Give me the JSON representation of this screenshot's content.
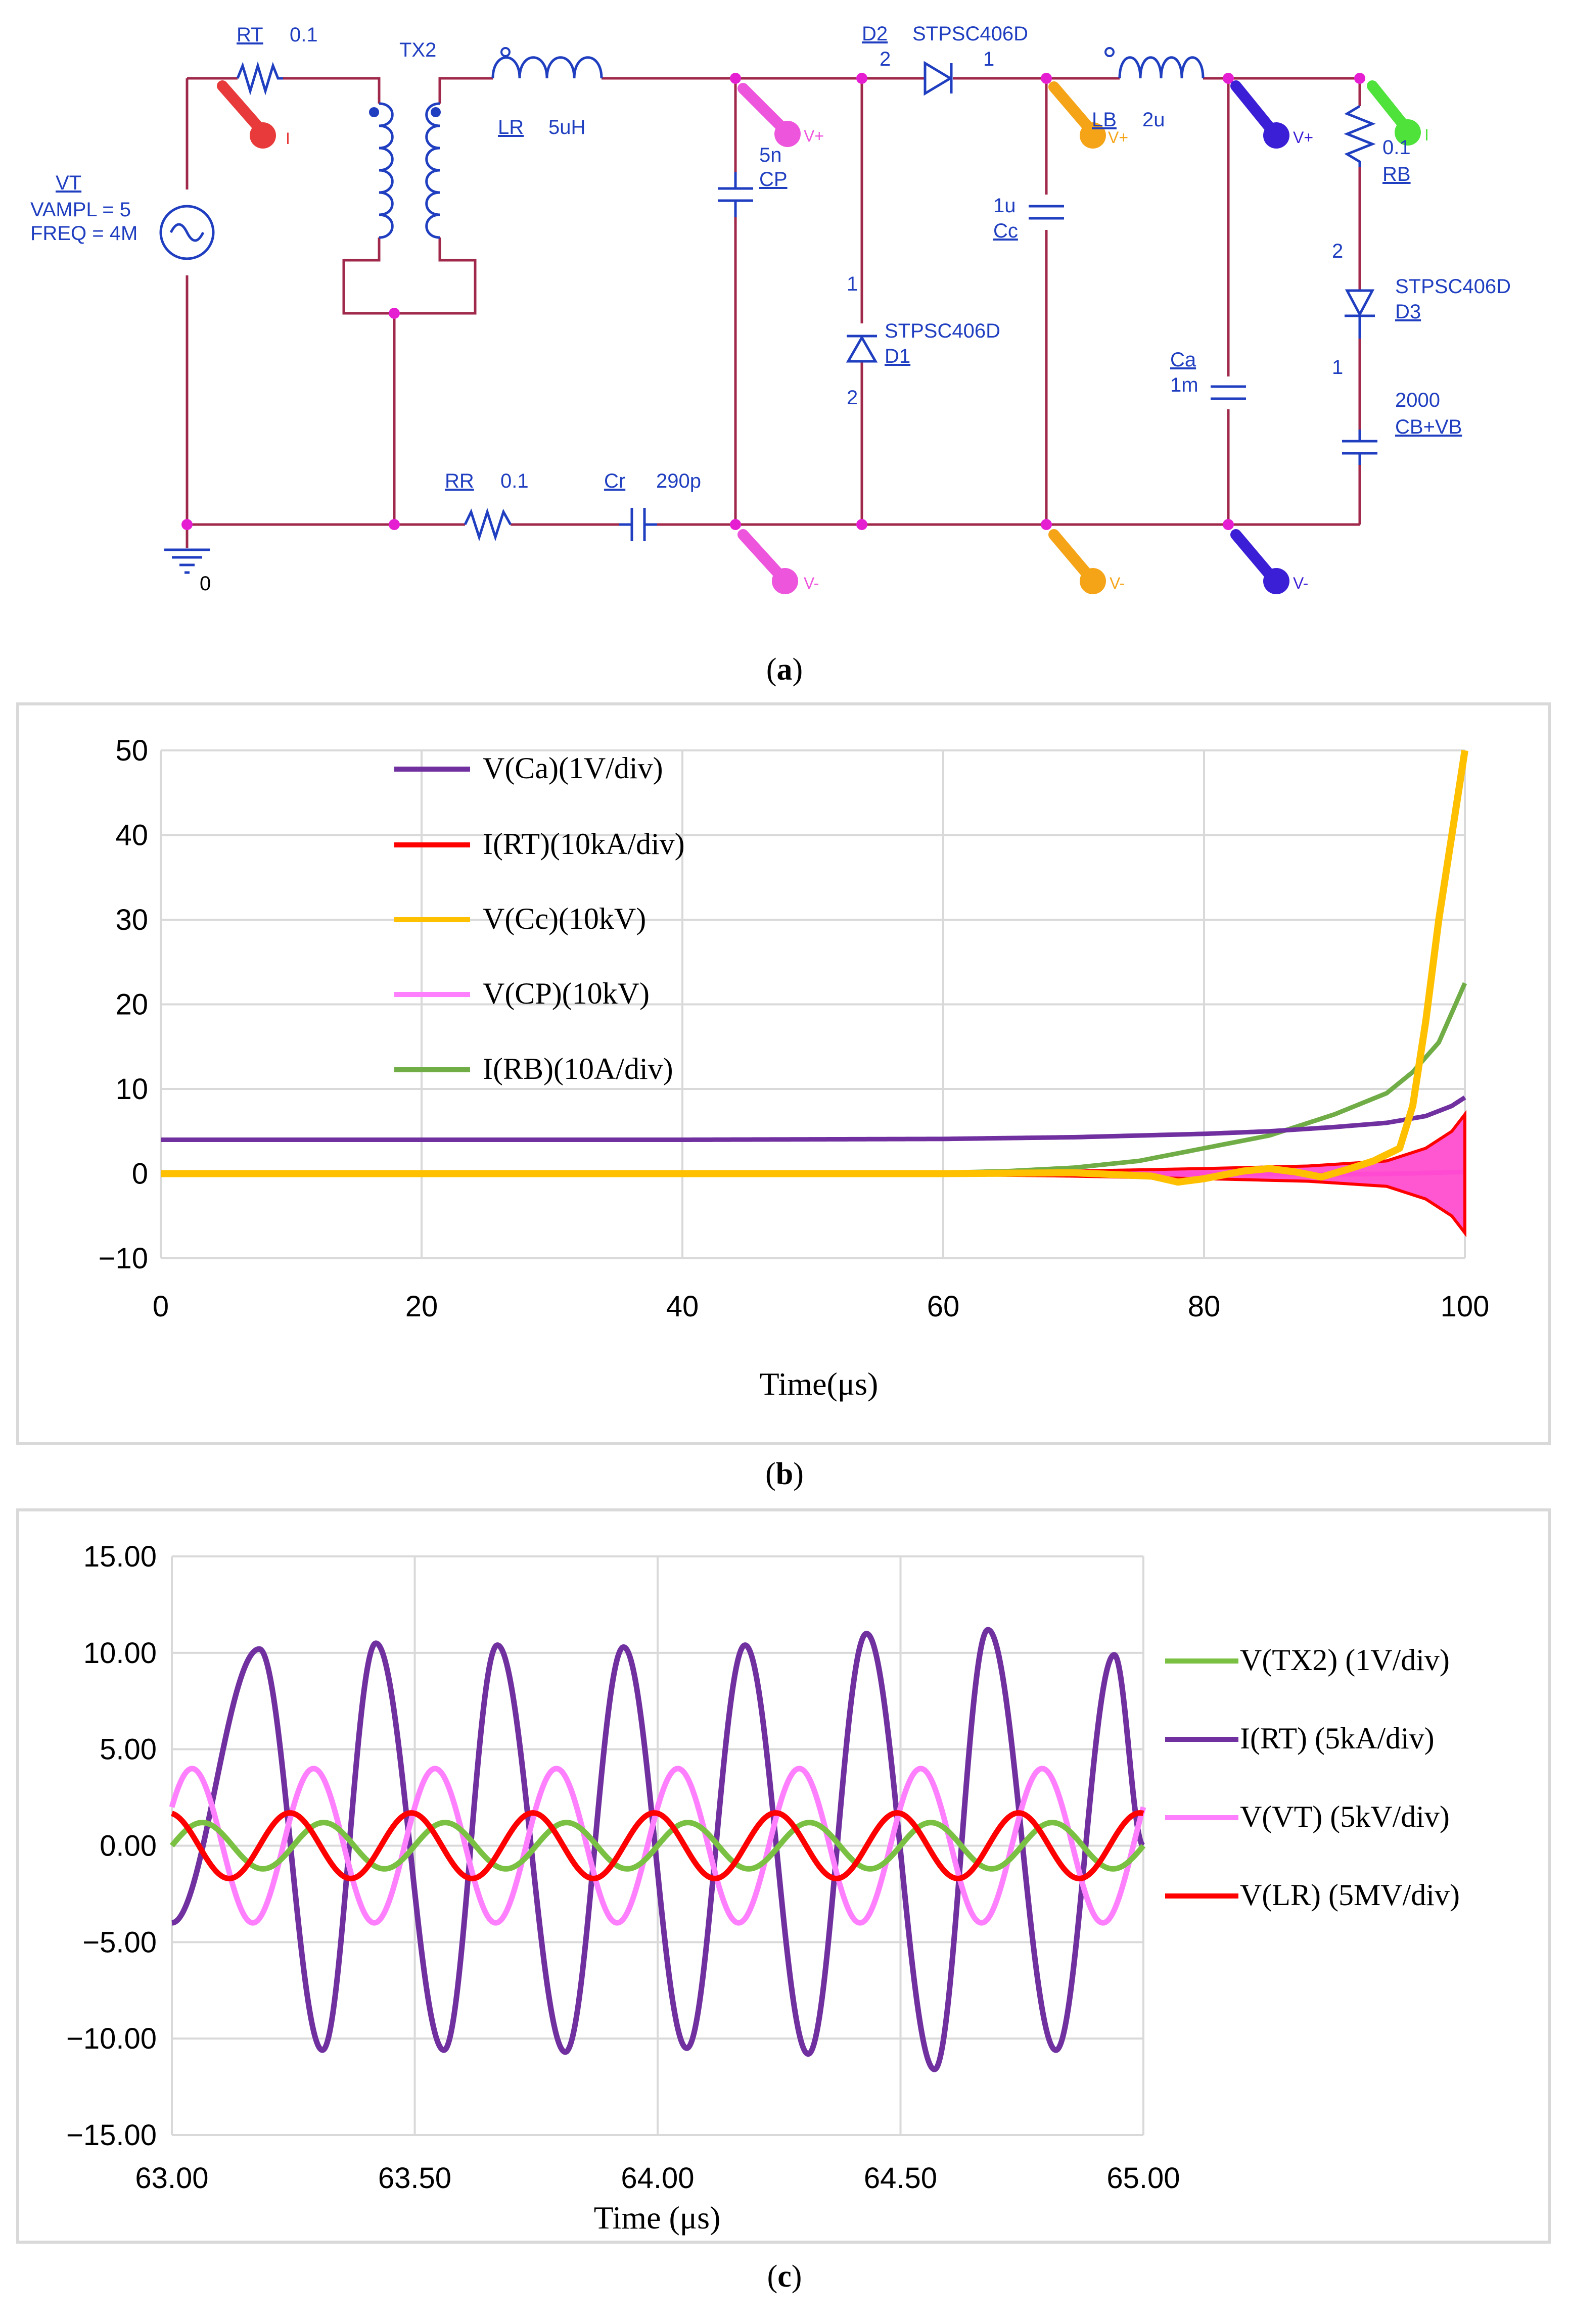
{
  "figure": {
    "captions": {
      "a": "a",
      "b": "b",
      "c": "c"
    }
  },
  "circuit": {
    "source": {
      "name": "VT",
      "vampl": "VAMPL = 5",
      "freq": "FREQ = 4M"
    },
    "ground": "0",
    "rt": {
      "name": "RT",
      "value": "0.1"
    },
    "tx": {
      "name": "TX2"
    },
    "lr": {
      "name": "LR",
      "value": "5uH"
    },
    "rr": {
      "name": "RR",
      "value": "0.1"
    },
    "cr": {
      "name": "Cr",
      "value": "290p"
    },
    "cp": {
      "name": "CP",
      "value": "5n"
    },
    "d2": {
      "name": "D2",
      "part": "STPSC406D",
      "pin_a": "2",
      "pin_b": "1"
    },
    "d1": {
      "name": "D1",
      "part": "STPSC406D",
      "pin_a": "1",
      "pin_b": "2"
    },
    "cc": {
      "name": "Cc",
      "value": "1u"
    },
    "lb": {
      "name": "LB",
      "value": "2u"
    },
    "ca": {
      "name": "Ca",
      "value": "1m"
    },
    "rb": {
      "name": "RB",
      "value": "0.1"
    },
    "d3": {
      "name": "D3",
      "part": "STPSC406D",
      "pin_a": "2",
      "pin_b": "1"
    },
    "cb": {
      "name": "CB+VB",
      "value": "2000"
    },
    "probes": {
      "current": "I",
      "vplus": "V+",
      "vminus": "V-"
    },
    "colors": {
      "wire": "#a0284b",
      "part": "#1f3ec0",
      "node": "#e61ed2",
      "probe_red": "#e83a3a",
      "probe_pink": "#ee55dd",
      "probe_orange": "#f5a418",
      "probe_blue": "#3b1fd6",
      "probe_green": "#4ee23a"
    }
  },
  "chart_data": [
    {
      "type": "line",
      "title": "",
      "xlabel": "Time(μs)",
      "ylabel": "",
      "xlim": [
        0,
        100
      ],
      "ylim": [
        -10,
        50
      ],
      "x_ticks": [
        "0",
        "20",
        "40",
        "60",
        "80",
        "100"
      ],
      "y_ticks": [
        "50",
        "40",
        "30",
        "20",
        "10",
        "0",
        "−10"
      ],
      "legend": "top-left",
      "series": [
        {
          "name": "V(Ca)(1V/div)",
          "color": "#7030a0",
          "x": [
            0,
            40,
            60,
            70,
            80,
            85,
            90,
            94,
            97,
            99,
            100
          ],
          "values": [
            4.0,
            4.0,
            4.1,
            4.3,
            4.7,
            5.0,
            5.5,
            6.0,
            6.8,
            8.0,
            9.0
          ]
        },
        {
          "name": "I(RT)(10kA/div)",
          "color": "#ff0000",
          "envelope": true,
          "x": [
            0,
            60,
            70,
            80,
            88,
            94,
            97,
            99,
            100
          ],
          "values": [
            0.0,
            0.1,
            0.3,
            0.6,
            0.9,
            1.5,
            3.0,
            5.0,
            7.0
          ]
        },
        {
          "name": "V(Cc)(10kV)",
          "color": "#ffc000",
          "x": [
            0,
            60,
            70,
            76,
            78,
            80,
            83,
            85,
            87,
            89,
            91,
            93,
            95,
            96,
            97,
            98,
            99,
            100
          ],
          "values": [
            0.0,
            0.0,
            0.1,
            -0.3,
            -1.0,
            -0.6,
            0.3,
            0.6,
            0.2,
            -0.4,
            0.5,
            1.5,
            3.0,
            8.0,
            18.0,
            30.0,
            40.0,
            50.0
          ]
        },
        {
          "name": "V(CP)(10kV)",
          "color": "#ff80ff",
          "x": [
            0,
            60,
            70,
            80,
            90,
            95,
            100
          ],
          "values": [
            0.0,
            0.0,
            0.05,
            0.0,
            -0.1,
            0.0,
            0.2
          ]
        },
        {
          "name": "I(RB)(10A/div)",
          "color": "#70ad47",
          "x": [
            0,
            55,
            60,
            65,
            70,
            75,
            80,
            85,
            90,
            94,
            96,
            98,
            100
          ],
          "values": [
            0.0,
            0.0,
            0.1,
            0.3,
            0.7,
            1.5,
            3.0,
            4.5,
            7.0,
            9.5,
            12.0,
            15.5,
            22.5
          ]
        }
      ]
    },
    {
      "type": "line",
      "title": "",
      "xlabel": "Time (μs)",
      "ylabel": "",
      "xlim": [
        63.0,
        65.0
      ],
      "ylim": [
        -15.0,
        15.0
      ],
      "x_ticks": [
        "63.00",
        "63.50",
        "64.00",
        "64.50",
        "65.00"
      ],
      "y_ticks": [
        "15.00",
        "10.00",
        "5.00",
        "0.00",
        "−5.00",
        "−10.00",
        "−15.00"
      ],
      "legend": "right",
      "series": [
        {
          "name": "V(TX2) (1V/div)",
          "color": "#7ac143",
          "frequency_mhz": 4,
          "amplitude": 1.2,
          "phase_deg": 0
        },
        {
          "name": "I(RT) (5kA/div)",
          "color": "#7030a0",
          "frequency_mhz": 4,
          "x": [
            63.0,
            63.18,
            63.31,
            63.42,
            63.56,
            63.67,
            63.81,
            63.93,
            64.06,
            64.18,
            64.31,
            64.43,
            64.57,
            64.68,
            64.82,
            64.94,
            65.0
          ],
          "values": [
            -4.0,
            10.2,
            -10.6,
            10.5,
            -10.6,
            10.4,
            -10.7,
            10.3,
            -10.5,
            10.4,
            -10.8,
            11.0,
            -11.6,
            11.2,
            -10.6,
            9.9,
            0.0
          ]
        },
        {
          "name": "V(VT) (5kV/div)",
          "color": "#ff80ff",
          "frequency_mhz": 4,
          "amplitude": 4.0,
          "phase_deg": 30
        },
        {
          "name": "V(LR) (5MV/div)",
          "color": "#ff0000",
          "frequency_mhz": 4,
          "amplitude": 1.7,
          "phase_deg": 100
        }
      ]
    }
  ]
}
